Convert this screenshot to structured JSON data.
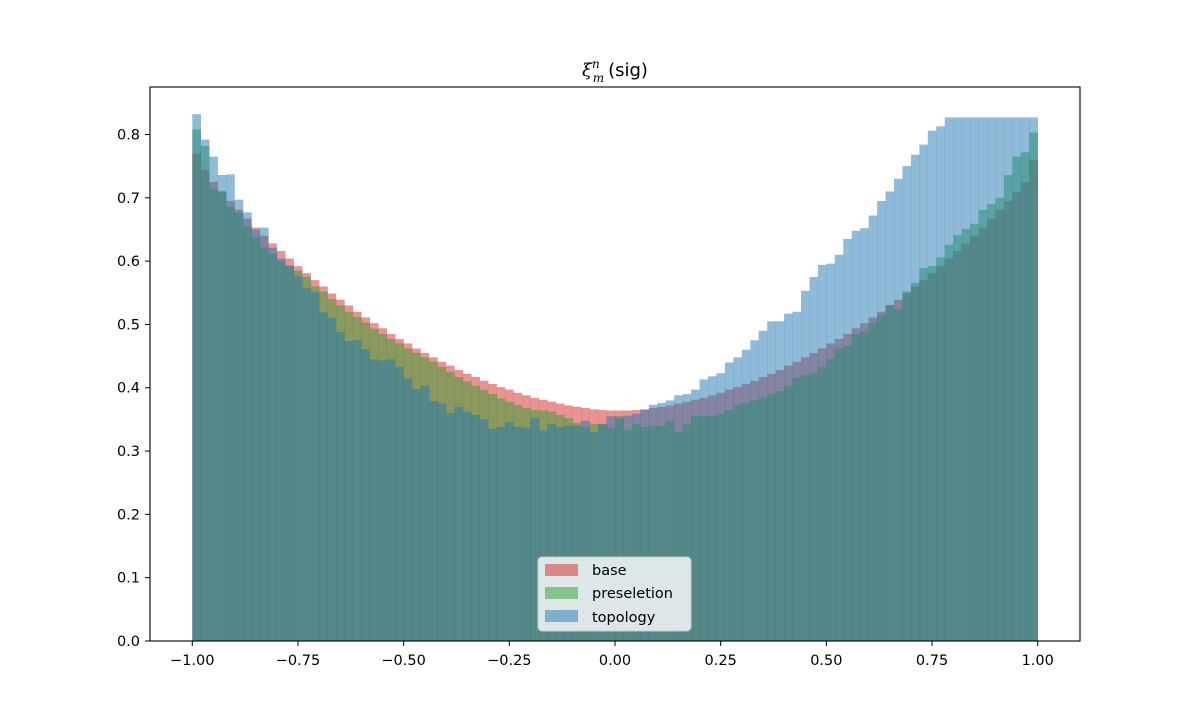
{
  "chart_data": {
    "type": "histogram",
    "title": "(sig)",
    "title_symbol": {
      "base": "ξ",
      "sup": "n",
      "sub": "m"
    },
    "xlabel": "",
    "ylabel": "",
    "xlim": [
      -1.1,
      1.1
    ],
    "ylim": [
      0,
      0.875
    ],
    "x_ticks": [
      -1.0,
      -0.75,
      -0.5,
      -0.25,
      0.0,
      0.25,
      0.5,
      0.75,
      1.0
    ],
    "x_tick_labels": [
      "−1.00",
      "−0.75",
      "−0.50",
      "−0.25",
      "0.00",
      "0.25",
      "0.50",
      "0.75",
      "1.00"
    ],
    "y_ticks": [
      0.0,
      0.1,
      0.2,
      0.3,
      0.4,
      0.5,
      0.6,
      0.7,
      0.8
    ],
    "y_tick_labels": [
      "0.0",
      "0.1",
      "0.2",
      "0.3",
      "0.4",
      "0.5",
      "0.6",
      "0.7",
      "0.8"
    ],
    "bin_range": [
      -1.0,
      1.0
    ],
    "n_bins": 100,
    "grid": false,
    "legend_position": "lower center",
    "series": [
      {
        "name": "base",
        "color": "#d62728",
        "opacity": 0.5,
        "values": [
          0.77,
          0.744,
          0.725,
          0.709,
          0.695,
          0.681,
          0.667,
          0.653,
          0.64,
          0.628,
          0.616,
          0.604,
          0.592,
          0.581,
          0.57,
          0.56,
          0.549,
          0.539,
          0.53,
          0.52,
          0.511,
          0.502,
          0.494,
          0.485,
          0.477,
          0.47,
          0.462,
          0.455,
          0.448,
          0.441,
          0.435,
          0.428,
          0.422,
          0.417,
          0.411,
          0.406,
          0.401,
          0.397,
          0.392,
          0.388,
          0.384,
          0.381,
          0.378,
          0.375,
          0.372,
          0.37,
          0.368,
          0.366,
          0.365,
          0.364,
          0.364,
          0.364,
          0.365,
          0.366,
          0.368,
          0.37,
          0.372,
          0.375,
          0.378,
          0.381,
          0.384,
          0.388,
          0.392,
          0.397,
          0.401,
          0.406,
          0.411,
          0.417,
          0.422,
          0.428,
          0.435,
          0.441,
          0.448,
          0.455,
          0.462,
          0.47,
          0.477,
          0.485,
          0.494,
          0.502,
          0.511,
          0.52,
          0.53,
          0.539,
          0.549,
          0.56,
          0.57,
          0.581,
          0.592,
          0.604,
          0.616,
          0.628,
          0.64,
          0.653,
          0.667,
          0.681,
          0.695,
          0.709,
          0.725,
          0.76
        ]
      },
      {
        "name": "preseletion",
        "color": "#2ca02c",
        "opacity": 0.5,
        "values": [
          0.808,
          0.782,
          0.714,
          0.711,
          0.686,
          0.676,
          0.655,
          0.638,
          0.622,
          0.612,
          0.6,
          0.593,
          0.585,
          0.575,
          0.56,
          0.552,
          0.54,
          0.53,
          0.52,
          0.512,
          0.503,
          0.493,
          0.485,
          0.477,
          0.47,
          0.462,
          0.455,
          0.448,
          0.441,
          0.433,
          0.425,
          0.417,
          0.41,
          0.403,
          0.397,
          0.39,
          0.383,
          0.378,
          0.373,
          0.368,
          0.365,
          0.364,
          0.362,
          0.357,
          0.352,
          0.344,
          0.338,
          0.343,
          0.343,
          0.337,
          0.352,
          0.333,
          0.343,
          0.338,
          0.34,
          0.34,
          0.348,
          0.33,
          0.342,
          0.355,
          0.355,
          0.356,
          0.359,
          0.365,
          0.373,
          0.376,
          0.38,
          0.385,
          0.39,
          0.395,
          0.403,
          0.416,
          0.42,
          0.423,
          0.433,
          0.446,
          0.462,
          0.466,
          0.485,
          0.489,
          0.502,
          0.515,
          0.531,
          0.524,
          0.552,
          0.566,
          0.589,
          0.592,
          0.606,
          0.626,
          0.641,
          0.651,
          0.659,
          0.681,
          0.69,
          0.7,
          0.736,
          0.765,
          0.772,
          0.803
        ]
      },
      {
        "name": "topology",
        "color": "#1f77b4",
        "opacity": 0.5,
        "values": [
          0.832,
          0.792,
          0.765,
          0.736,
          0.737,
          0.697,
          0.677,
          0.65,
          0.653,
          0.621,
          0.604,
          0.593,
          0.577,
          0.557,
          0.551,
          0.519,
          0.51,
          0.488,
          0.474,
          0.475,
          0.461,
          0.445,
          0.443,
          0.445,
          0.433,
          0.415,
          0.398,
          0.403,
          0.379,
          0.375,
          0.36,
          0.37,
          0.362,
          0.357,
          0.35,
          0.335,
          0.338,
          0.346,
          0.338,
          0.337,
          0.352,
          0.333,
          0.343,
          0.338,
          0.34,
          0.34,
          0.348,
          0.33,
          0.342,
          0.355,
          0.355,
          0.356,
          0.359,
          0.365,
          0.373,
          0.376,
          0.38,
          0.388,
          0.39,
          0.397,
          0.413,
          0.418,
          0.423,
          0.44,
          0.448,
          0.46,
          0.475,
          0.49,
          0.505,
          0.505,
          0.517,
          0.52,
          0.553,
          0.575,
          0.594,
          0.596,
          0.61,
          0.635,
          0.648,
          0.652,
          0.672,
          0.695,
          0.71,
          0.73,
          0.75,
          0.768,
          0.784,
          0.806,
          0.813,
          0.827,
          0.827,
          0.827,
          0.827,
          0.827,
          0.827,
          0.827,
          0.827,
          0.827,
          0.827,
          0.827
        ]
      }
    ]
  },
  "legend": {
    "items": [
      {
        "label": "base",
        "color": "#d62728"
      },
      {
        "label": "preseletion",
        "color": "#2ca02c"
      },
      {
        "label": "topology",
        "color": "#1f77b4"
      }
    ]
  }
}
